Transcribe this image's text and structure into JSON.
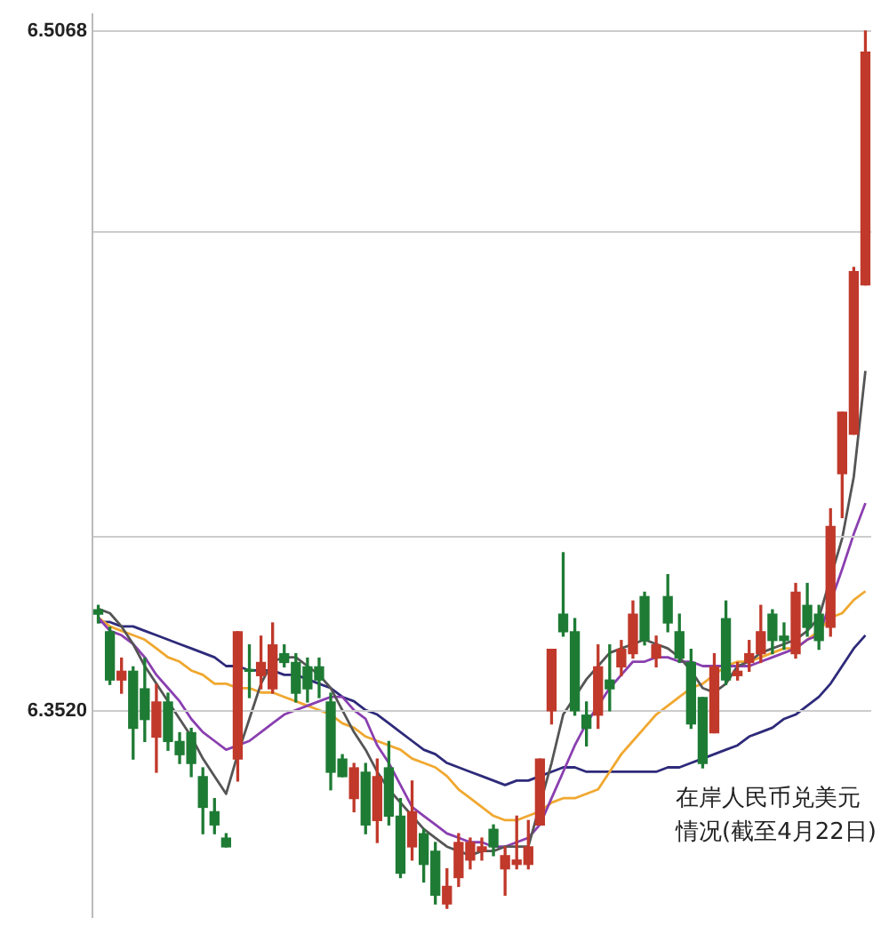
{
  "chart_data": [
    {
      "type": "candlestick",
      "ylim": [
        6.305,
        6.51
      ],
      "yticks": [
        {
          "value": 6.352,
          "label": "6.3520"
        },
        {
          "value": 6.3916,
          "label": null
        },
        {
          "value": 6.461,
          "label": null
        },
        6.5068
      ],
      "grid": "y",
      "tick_labels": "y",
      "categories": [
        null,
        null,
        null,
        null,
        null,
        null,
        null,
        null,
        null,
        null,
        null,
        null,
        null,
        null,
        null,
        null,
        null,
        null,
        null,
        null,
        null,
        null,
        null,
        null,
        null,
        null,
        null,
        null,
        null,
        null,
        null,
        null,
        null,
        null,
        null,
        null,
        null,
        null,
        null,
        null,
        null,
        null,
        null,
        null,
        null,
        null,
        null,
        null,
        null,
        null,
        null,
        null,
        null,
        null,
        null,
        null,
        null,
        null,
        null,
        null,
        null,
        null,
        null,
        null,
        null,
        null,
        null
      ],
      "ohlc": [
        [
          6.375,
          6.376,
          6.372,
          6.374
        ],
        [
          6.37,
          6.371,
          6.358,
          6.359
        ],
        [
          6.359,
          6.364,
          6.356,
          6.361
        ],
        [
          6.361,
          6.362,
          6.341,
          6.348
        ],
        [
          6.357,
          6.364,
          6.345,
          6.35
        ],
        [
          6.346,
          6.358,
          6.338,
          6.354
        ],
        [
          6.354,
          6.356,
          6.343,
          6.345
        ],
        [
          6.345,
          6.347,
          6.34,
          6.342
        ],
        [
          6.347,
          6.348,
          6.337,
          6.34
        ],
        [
          6.337,
          6.339,
          6.324,
          6.33
        ],
        [
          6.329,
          6.332,
          6.324,
          6.326
        ],
        [
          6.323,
          6.324,
          6.321,
          6.321
        ],
        [
          6.341,
          6.37,
          6.336,
          6.37
        ],
        [
          6.361,
          6.367,
          6.355,
          6.361
        ],
        [
          6.36,
          6.369,
          6.357,
          6.363
        ],
        [
          6.357,
          6.372,
          6.356,
          6.367
        ],
        [
          6.365,
          6.367,
          6.362,
          6.363
        ],
        [
          6.363,
          6.365,
          6.354,
          6.356
        ],
        [
          6.362,
          6.364,
          6.354,
          6.357
        ],
        [
          6.362,
          6.364,
          6.355,
          6.359
        ],
        [
          6.354,
          6.356,
          6.334,
          6.338
        ],
        [
          6.341,
          6.342,
          6.337,
          6.337
        ],
        [
          6.332,
          6.34,
          6.329,
          6.339
        ],
        [
          6.338,
          6.34,
          6.324,
          6.326
        ],
        [
          6.327,
          6.341,
          6.322,
          6.337
        ],
        [
          6.339,
          6.345,
          6.326,
          6.328
        ],
        [
          6.328,
          6.332,
          6.314,
          6.315
        ],
        [
          6.321,
          6.336,
          6.318,
          6.329
        ],
        [
          6.324,
          6.325,
          6.313,
          6.317
        ],
        [
          6.32,
          6.322,
          6.308,
          6.31
        ],
        [
          6.308,
          6.316,
          6.307,
          6.312
        ],
        [
          6.314,
          6.324,
          6.312,
          6.322
        ],
        [
          6.318,
          6.323,
          6.316,
          6.322
        ],
        [
          6.32,
          6.323,
          6.318,
          6.321
        ],
        [
          6.325,
          6.326,
          6.319,
          6.321
        ],
        [
          6.316,
          6.321,
          6.31,
          6.319
        ],
        [
          6.317,
          6.328,
          6.316,
          6.318
        ],
        [
          6.317,
          6.327,
          6.316,
          6.321
        ],
        [
          6.326,
          6.341,
          6.326,
          6.341
        ],
        [
          6.352,
          6.366,
          6.349,
          6.366
        ],
        [
          6.374,
          6.388,
          6.369,
          6.37
        ],
        [
          6.37,
          6.373,
          6.351,
          6.352
        ],
        [
          6.351,
          6.354,
          6.344,
          6.348
        ],
        [
          6.351,
          6.367,
          6.348,
          6.362
        ],
        [
          6.359,
          6.367,
          6.352,
          6.357
        ],
        [
          6.362,
          6.368,
          6.36,
          6.366
        ],
        [
          6.365,
          6.377,
          6.364,
          6.374
        ],
        [
          6.378,
          6.379,
          6.367,
          6.368
        ],
        [
          6.364,
          6.369,
          6.362,
          6.367
        ],
        [
          6.378,
          6.383,
          6.37,
          6.372
        ],
        [
          6.37,
          6.374,
          6.363,
          6.364
        ],
        [
          6.363,
          6.366,
          6.348,
          6.349
        ],
        [
          6.355,
          6.355,
          6.339,
          6.34
        ],
        [
          6.347,
          6.365,
          6.347,
          6.362
        ],
        [
          6.373,
          6.377,
          6.358,
          6.359
        ],
        [
          6.36,
          6.363,
          6.359,
          6.361
        ],
        [
          6.363,
          6.368,
          6.361,
          6.365
        ],
        [
          6.365,
          6.376,
          6.363,
          6.37
        ],
        [
          6.374,
          6.375,
          6.365,
          6.368
        ],
        [
          6.369,
          6.372,
          6.366,
          6.368
        ],
        [
          6.365,
          6.381,
          6.364,
          6.379
        ],
        [
          6.376,
          6.381,
          6.369,
          6.371
        ],
        [
          6.374,
          6.376,
          6.366,
          6.368
        ],
        [
          6.371,
          6.398,
          6.369,
          6.394
        ],
        [
          6.406,
          6.42,
          6.396,
          6.42
        ],
        [
          6.415,
          6.453,
          6.415,
          6.452
        ],
        [
          6.449,
          6.5068,
          6.449,
          6.502
        ]
      ],
      "colors": [
        "#1e7b34",
        "#1e7b34",
        "#c0392b",
        "#1e7b34",
        "#1e7b34",
        "#c0392b",
        "#1e7b34",
        "#1e7b34",
        "#1e7b34",
        "#1e7b34",
        "#1e7b34",
        "#1e7b34",
        "#c0392b",
        "#1e7b34",
        "#c0392b",
        "#c0392b",
        "#1e7b34",
        "#1e7b34",
        "#1e7b34",
        "#1e7b34",
        "#1e7b34",
        "#1e7b34",
        "#c0392b",
        "#1e7b34",
        "#c0392b",
        "#1e7b34",
        "#1e7b34",
        "#c0392b",
        "#1e7b34",
        "#1e7b34",
        "#c0392b",
        "#c0392b",
        "#c0392b",
        "#c0392b",
        "#1e7b34",
        "#c0392b",
        "#c0392b",
        "#c0392b",
        "#c0392b",
        "#c0392b",
        "#1e7b34",
        "#1e7b34",
        "#1e7b34",
        "#c0392b",
        "#1e7b34",
        "#c0392b",
        "#c0392b",
        "#1e7b34",
        "#c0392b",
        "#1e7b34",
        "#1e7b34",
        "#1e7b34",
        "#1e7b34",
        "#c0392b",
        "#1e7b34",
        "#c0392b",
        "#c0392b",
        "#c0392b",
        "#1e7b34",
        "#1e7b34",
        "#c0392b",
        "#1e7b34",
        "#1e7b34",
        "#c0392b",
        "#c0392b",
        "#c0392b",
        "#c0392b"
      ],
      "annotations": [
        "在岸人民币兑美元情况(截至4月22日)"
      ]
    },
    {
      "type": "line",
      "ylim": [
        6.305,
        6.51
      ],
      "tick_labels": false,
      "marker": "none",
      "categories": [
        null,
        null,
        null,
        null,
        null,
        null,
        null,
        null,
        null,
        null,
        null,
        null,
        null,
        null,
        null,
        null,
        null,
        null,
        null,
        null,
        null,
        null,
        null,
        null,
        null,
        null,
        null,
        null,
        null,
        null,
        null,
        null,
        null,
        null,
        null,
        null,
        null,
        null,
        null,
        null,
        null,
        null,
        null,
        null,
        null,
        null,
        null,
        null,
        null,
        null,
        null,
        null,
        null,
        null,
        null,
        null,
        null,
        null,
        null,
        null,
        null,
        null,
        null,
        null,
        null,
        null,
        null
      ],
      "series": [
        {
          "color": "#555555",
          "values": [
            6.375,
            6.374,
            6.371,
            6.367,
            6.362,
            6.358,
            6.354,
            6.35,
            6.346,
            6.341,
            6.337,
            6.333,
            6.342,
            6.35,
            6.358,
            6.363,
            6.364,
            6.364,
            6.362,
            6.36,
            6.357,
            6.352,
            6.347,
            6.343,
            6.338,
            6.334,
            6.331,
            6.328,
            6.325,
            6.323,
            6.321,
            6.32,
            6.319,
            6.32,
            6.32,
            6.321,
            6.321,
            6.321,
            null,
            6.34,
            6.351,
            6.355,
            6.359,
            6.362,
            6.365,
            6.366,
            6.367,
            6.368,
            6.367,
            6.366,
            6.364,
            6.361,
            6.357,
            6.356,
            6.358,
            6.362,
            6.363,
            6.365,
            6.366,
            6.367,
            6.368,
            6.37,
            6.373,
            null,
            6.391,
            6.405,
            6.429
          ]
        },
        {
          "color": "#8a3fb0",
          "values": [
            6.373,
            6.37,
            6.369,
            6.367,
            6.364,
            6.36,
            6.357,
            6.354,
            6.35,
            6.347,
            6.345,
            6.343,
            6.344,
            6.345,
            6.347,
            6.349,
            6.351,
            6.352,
            6.353,
            6.354,
            6.355,
            6.355,
            6.352,
            6.35,
            6.344,
            6.34,
            6.335,
            6.33,
            6.328,
            6.326,
            6.324,
            6.323,
            6.322,
            6.322,
            6.321,
            6.321,
            6.322,
            6.323,
            6.326,
            6.332,
            6.338,
            6.344,
            6.349,
            6.353,
            6.357,
            6.36,
            6.363,
            6.363,
            6.364,
            6.364,
            6.363,
            6.363,
            6.362,
            6.362,
            6.362,
            6.362,
            6.362,
            6.363,
            6.364,
            6.365,
            6.366,
            6.368,
            6.369,
            null,
            6.384,
            6.392,
            6.399
          ]
        },
        {
          "color": "#f0a830",
          "values": [
            6.373,
            6.371,
            6.37,
            6.369,
            6.368,
            6.366,
            6.364,
            6.363,
            6.361,
            6.36,
            6.358,
            6.358,
            6.357,
            6.357,
            6.356,
            6.356,
            6.355,
            6.354,
            6.353,
            6.352,
            6.351,
            6.349,
            6.348,
            6.346,
            6.345,
            6.344,
            6.343,
            6.341,
            6.34,
            6.339,
            6.337,
            6.334,
            6.332,
            6.33,
            6.328,
            6.327,
            6.327,
            6.328,
            6.329,
            6.331,
            6.332,
            6.332,
            6.333,
            6.334,
            6.338,
            6.342,
            6.345,
            6.348,
            6.351,
            6.353,
            6.355,
            6.357,
            6.358,
            6.36,
            6.362,
            6.363,
            6.363,
            6.364,
            6.365,
            6.366,
            6.366,
            6.368,
            6.37,
            6.373,
            6.374,
            6.377,
            6.379
          ]
        },
        {
          "color": "#2e2a7a",
          "values": [
            6.372,
            6.372,
            6.371,
            6.371,
            6.37,
            6.369,
            6.368,
            6.367,
            6.366,
            6.365,
            6.364,
            6.362,
            6.362,
            6.361,
            6.361,
            6.361,
            6.36,
            6.36,
            6.359,
            6.358,
            6.357,
            6.355,
            6.354,
            6.352,
            6.351,
            6.349,
            6.347,
            6.345,
            6.343,
            6.342,
            6.34,
            6.339,
            6.338,
            6.337,
            6.336,
            6.335,
            6.336,
            6.336,
            6.337,
            6.338,
            6.339,
            6.339,
            6.338,
            6.338,
            6.338,
            6.338,
            6.338,
            6.338,
            6.338,
            6.339,
            6.339,
            6.34,
            6.341,
            6.342,
            6.343,
            6.344,
            6.346,
            6.347,
            6.348,
            6.35,
            6.351,
            6.353,
            6.355,
            6.358,
            6.362,
            6.366,
            6.369
          ]
        }
      ]
    }
  ]
}
